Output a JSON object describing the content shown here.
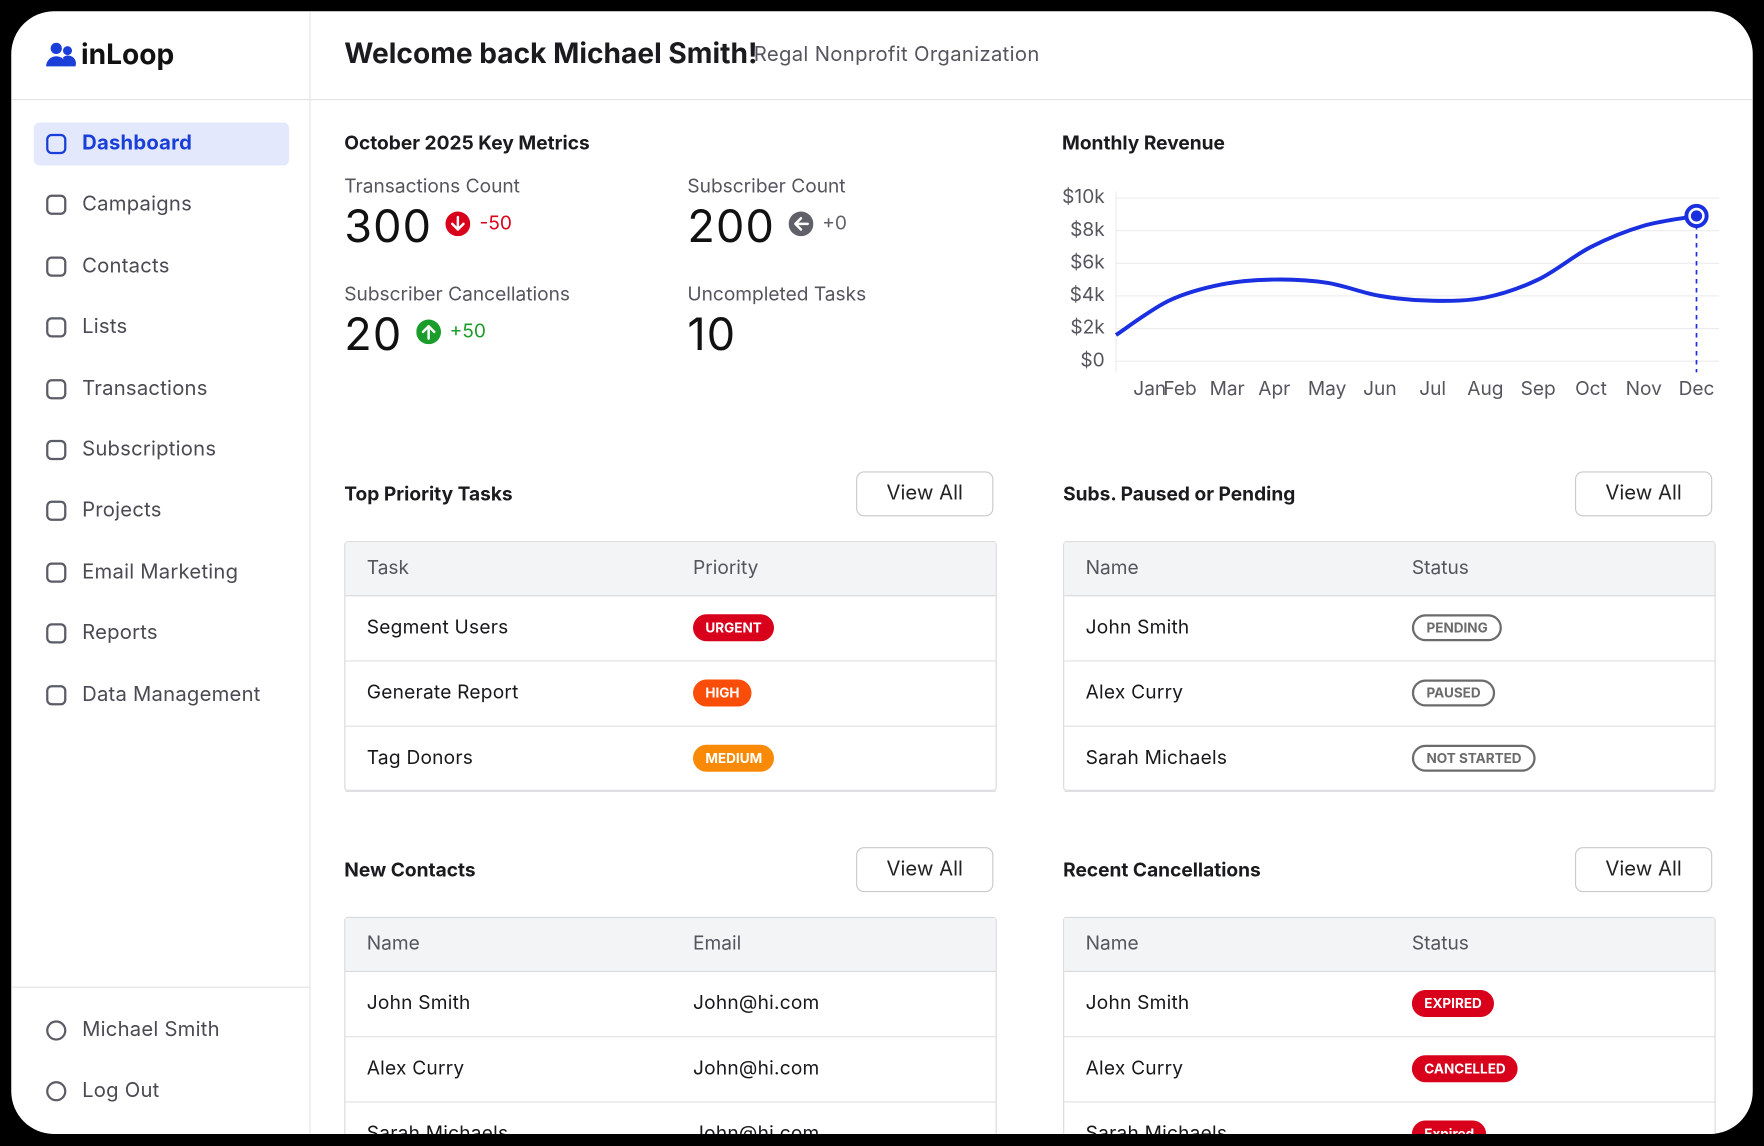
{
  "brand": "inLoop",
  "nav": [
    "Dashboard",
    "Campaigns",
    "Contacts",
    "Lists",
    "Transactions",
    "Subscriptions",
    "Projects",
    "Email Marketing",
    "Reports",
    "Data Management"
  ],
  "active_nav": 0,
  "footer_nav": [
    "Michael Smith",
    "Log Out"
  ],
  "header": {
    "title": "Welcome back Michael Smith!",
    "subtitle": "Regal Nonprofit Organization"
  },
  "metrics": {
    "title": "October 2025 Key Metrics",
    "items": [
      {
        "label": "Transactions Count",
        "value": 300,
        "change": "-50",
        "change_color": "#d9001b",
        "change_icon": "down"
      },
      {
        "label": "Subscriber Count",
        "value": 200,
        "change": "+0",
        "change_color": "#5f6068",
        "change_icon": "left"
      },
      {
        "label": "Subscriber Cancellations",
        "value": 20,
        "change": "+50",
        "change_color": "#1a9d2a",
        "change_icon": "up"
      },
      {
        "label": "Uncompleted Tasks",
        "value": 10
      }
    ]
  },
  "chart_data": {
    "type": "line",
    "title": "Monthly Revenue",
    "categories": [
      "Jan",
      "Feb",
      "Mar",
      "Apr",
      "May",
      "Jun",
      "Jul",
      "Aug",
      "Sep",
      "Oct",
      "Nov",
      "Dec"
    ],
    "values": [
      1600,
      3700,
      4700,
      5000,
      4800,
      4000,
      3700,
      3900,
      5000,
      7000,
      8300,
      8900
    ],
    "color": "#1a2fe0",
    "ylim": [
      0,
      10000
    ],
    "yticks": [
      {
        "value": 0,
        "label": "$0"
      },
      {
        "value": 2000,
        "label": "$2k"
      },
      {
        "value": 4000,
        "label": "$4k"
      },
      {
        "value": 6000,
        "label": "$6k"
      },
      {
        "value": 8000,
        "label": "$8k"
      },
      {
        "value": 10000,
        "label": "$10k"
      }
    ],
    "grid": true,
    "highlight_index": 11
  },
  "panels": [
    {
      "title": "Top Priority Tasks",
      "button": "View All",
      "columns": [
        "Task",
        "Priority"
      ],
      "badge_style": "filled",
      "rows": [
        {
          "cells": [
            "Segment Users",
            "URGENT"
          ],
          "badge_color": "#d9001b"
        },
        {
          "cells": [
            "Generate Report",
            "HIGH"
          ],
          "badge_color": "#fa4d0a"
        },
        {
          "cells": [
            "Tag Donors",
            "MEDIUM"
          ],
          "badge_color": "#f98a07"
        }
      ]
    },
    {
      "title": "Subs. Paused or Pending",
      "button": "View All",
      "columns": [
        "Name",
        "Status"
      ],
      "badge_style": "outline",
      "rows": [
        {
          "cells": [
            "John Smith",
            "PENDING"
          ],
          "badge_color": "#6b6b6b"
        },
        {
          "cells": [
            "Alex Curry",
            "PAUSED"
          ],
          "badge_color": "#6b6b6b"
        },
        {
          "cells": [
            "Sarah Michaels",
            "NOT STARTED"
          ],
          "badge_color": "#6b6b6b"
        }
      ]
    },
    {
      "title": "New Contacts",
      "button": "View All",
      "columns": [
        "Name",
        "Email"
      ],
      "badge_style": "none",
      "rows": [
        {
          "cells": [
            "John Smith",
            "John@hi.com"
          ]
        },
        {
          "cells": [
            "Alex Curry",
            "John@hi.com"
          ]
        },
        {
          "cells": [
            "Sarah Michaels",
            "John@hi.com"
          ]
        }
      ]
    },
    {
      "title": "Recent Cancellations",
      "button": "View All",
      "columns": [
        "Name",
        "Status"
      ],
      "badge_style": "filled",
      "rows": [
        {
          "cells": [
            "John Smith",
            "EXPIRED"
          ],
          "badge_color": "#d9001b"
        },
        {
          "cells": [
            "Alex Curry",
            "CANCELLED"
          ],
          "badge_color": "#d9001b"
        },
        {
          "cells": [
            "Sarah Michaels",
            "Expired"
          ],
          "badge_color": "#d9001b"
        }
      ]
    }
  ]
}
